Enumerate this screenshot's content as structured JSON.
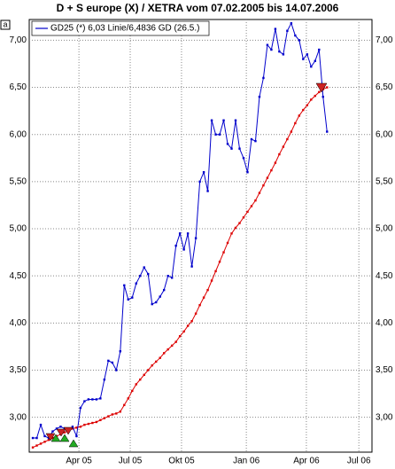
{
  "chart_data": {
    "type": "line",
    "title": "D + S europe (X) / XETRA vom 07.02.2005 bis 14.07.2006",
    "corner_label": "a",
    "categories": [
      null,
      null,
      null,
      null,
      null,
      null,
      null,
      null,
      null,
      null,
      null,
      null,
      null,
      null,
      null,
      null,
      null,
      null,
      null,
      null,
      null,
      null,
      null,
      null,
      null,
      null,
      null,
      null,
      null,
      null,
      null,
      null,
      null,
      null,
      null,
      null,
      null,
      null,
      null,
      null,
      null,
      null,
      null,
      null,
      null,
      null,
      null,
      null,
      null,
      null,
      null,
      null,
      null,
      null,
      null,
      null,
      null,
      null,
      null,
      null,
      null,
      null,
      null,
      null,
      null,
      null,
      null,
      null,
      null,
      null,
      null,
      null,
      null,
      null,
      null
    ],
    "series": [
      {
        "name": "GD25 (*) 6,03 Linie/6,4836 GD (26.5.)",
        "color": "#0000cc",
        "values": [
          2.78,
          2.78,
          2.92,
          2.8,
          2.78,
          2.85,
          2.88,
          2.9,
          2.88,
          2.85,
          2.9,
          2.8,
          3.1,
          3.17,
          3.19,
          3.19,
          3.19,
          3.2,
          3.4,
          3.6,
          3.58,
          3.5,
          3.7,
          4.4,
          4.25,
          4.27,
          4.42,
          4.5,
          4.59,
          4.52,
          4.2,
          4.22,
          4.28,
          4.35,
          4.5,
          4.48,
          4.82,
          4.95,
          4.78,
          4.95,
          4.6,
          4.9,
          5.5,
          5.6,
          5.4,
          6.15,
          6.0,
          6.0,
          6.15,
          5.9,
          5.85,
          6.15,
          5.85,
          5.75,
          5.6,
          5.95,
          5.93,
          6.4,
          6.6,
          6.95,
          6.9,
          7.12,
          6.88,
          6.85,
          7.1,
          7.18,
          7.05,
          7.0,
          6.8,
          6.85,
          6.72,
          6.78,
          6.9,
          6.4,
          6.03
        ]
      },
      {
        "color": "#dd0000",
        "values": [
          2.68,
          2.7,
          2.72,
          2.74,
          2.76,
          2.78,
          2.8,
          2.82,
          2.84,
          2.86,
          2.88,
          2.89,
          2.9,
          2.92,
          2.93,
          2.94,
          2.95,
          2.97,
          2.99,
          3.01,
          3.03,
          3.04,
          3.06,
          3.13,
          3.2,
          3.28,
          3.35,
          3.4,
          3.45,
          3.5,
          3.55,
          3.59,
          3.63,
          3.68,
          3.72,
          3.76,
          3.8,
          3.86,
          3.91,
          3.97,
          4.02,
          4.1,
          4.19,
          4.27,
          4.35,
          4.45,
          4.55,
          4.65,
          4.75,
          4.85,
          4.95,
          5.01,
          5.06,
          5.12,
          5.18,
          5.24,
          5.3,
          5.38,
          5.46,
          5.54,
          5.62,
          5.7,
          5.79,
          5.87,
          5.95,
          6.03,
          6.12,
          6.2,
          6.26,
          6.31,
          6.37,
          6.41,
          6.45,
          6.48,
          6.5
        ]
      }
    ],
    "xlim": [
      -0.9,
      85.3
    ],
    "xticks": [
      {
        "value": 11.6,
        "label": "Apr 05"
      },
      {
        "value": 24.5,
        "label": "Jul 05"
      },
      {
        "value": 37.4,
        "label": "Okt 05"
      },
      {
        "value": 53.7,
        "label": "Jan 06"
      },
      {
        "value": 68.8,
        "label": "Apr 06"
      },
      {
        "value": 82,
        "label": "Jul 06"
      }
    ],
    "ylim": [
      2.63,
      7.22
    ],
    "yticks": [
      {
        "value": 3,
        "label": "3,00"
      },
      {
        "value": 3.5,
        "label": "3,50"
      },
      {
        "value": 4,
        "label": "4,00"
      },
      {
        "value": 4.5,
        "label": "4,50"
      },
      {
        "value": 5,
        "label": "5,00"
      },
      {
        "value": 5.5,
        "label": "5,50"
      },
      {
        "value": 6,
        "label": "6,00"
      },
      {
        "value": 6.5,
        "label": "6,50"
      },
      {
        "value": 7,
        "label": "7,00"
      }
    ],
    "grid": true
  }
}
